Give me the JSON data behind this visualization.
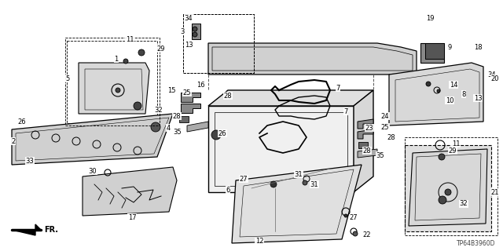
{
  "part_code": "TP64B3960D",
  "background_color": "#ffffff",
  "line_color": "#000000",
  "fig_width": 6.4,
  "fig_height": 3.2,
  "dpi": 100
}
